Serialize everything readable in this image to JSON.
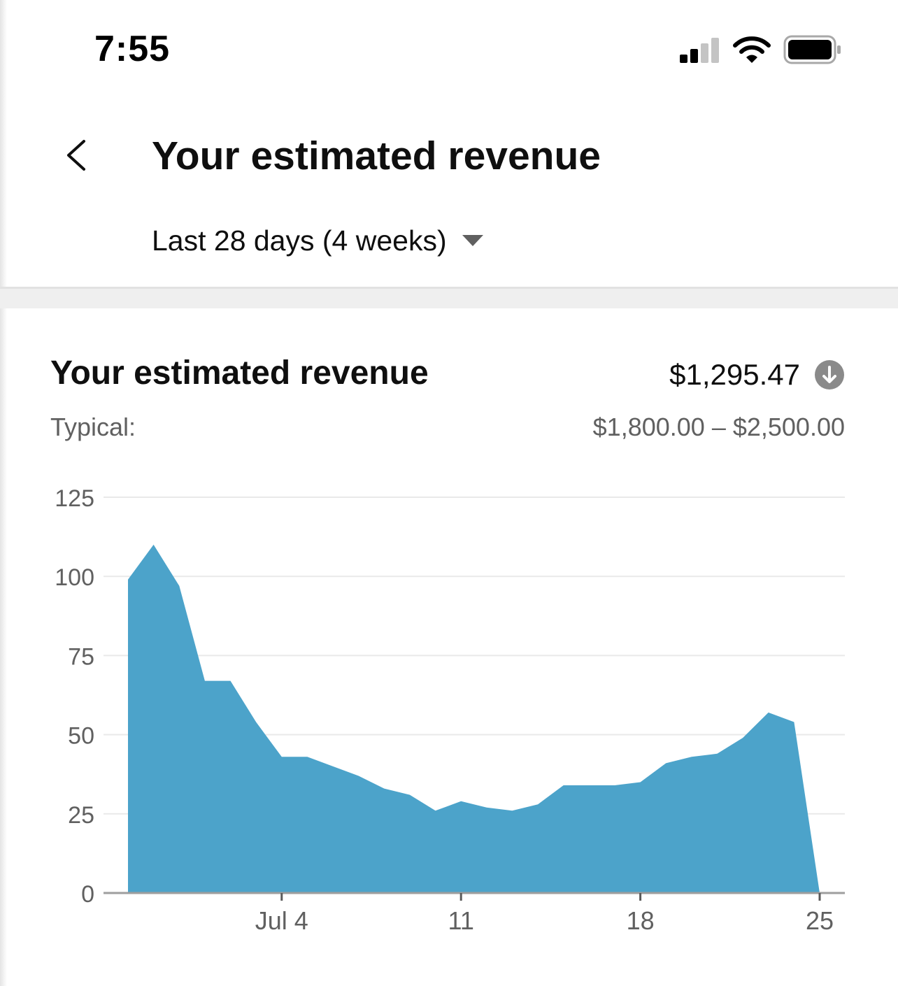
{
  "status_bar": {
    "time": "7:55",
    "signal_icon": "cellular-signal-icon",
    "wifi_icon": "wifi-icon",
    "battery_icon": "battery-icon"
  },
  "header": {
    "back_icon": "chevron-left-icon",
    "title": "Your estimated revenue",
    "range_label": "Last 28 days (4 weeks)",
    "range_icon": "caret-down-icon"
  },
  "card": {
    "title": "Your estimated revenue",
    "value": "$1,295.47",
    "trend_icon": "arrow-down-circle-icon",
    "typical_label": "Typical:",
    "typical_range": "$1,800.00 – $2,500.00"
  },
  "colors": {
    "area_fill": "#4ca3ca",
    "grid": "#e9e9e9",
    "axis": "#9e9e9e",
    "muted_text": "#606060"
  },
  "chart_data": {
    "type": "area",
    "title": "",
    "xlabel": "",
    "ylabel": "",
    "ylim": [
      0,
      125
    ],
    "yticks": [
      0,
      25,
      50,
      75,
      100,
      125
    ],
    "xlim": [
      0,
      28
    ],
    "xticks": [
      {
        "x": 6,
        "label": "Jul 4"
      },
      {
        "x": 13,
        "label": "11"
      },
      {
        "x": 20,
        "label": "18"
      },
      {
        "x": 27,
        "label": "25"
      }
    ],
    "grid": true,
    "series": [
      {
        "values": [
          0,
          99,
          110,
          97,
          67,
          67,
          54,
          43,
          43,
          40,
          37,
          33,
          31,
          26,
          29,
          27,
          26,
          28,
          34,
          34,
          34,
          35,
          41,
          43,
          44,
          49,
          57,
          54,
          0
        ],
        "x": [
          1,
          1,
          2,
          3,
          4,
          5,
          6,
          7,
          8,
          9,
          10,
          11,
          12,
          13,
          14,
          15,
          16,
          17,
          18,
          19,
          20,
          21,
          22,
          23,
          24,
          25,
          26,
          27,
          28
        ]
      }
    ]
  }
}
